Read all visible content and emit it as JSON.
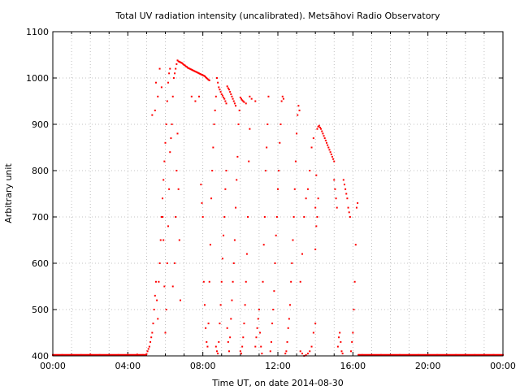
{
  "chart_data": {
    "type": "scatter",
    "title": "Total UV radiation intensity (uncalibrated). Metsähovi Radio Observatory",
    "xlabel": "Time UT, on date 2014-08-30",
    "ylabel": "Arbitrary unit",
    "xlim": [
      0,
      24
    ],
    "ylim": [
      400,
      1100
    ],
    "x_ticks": [
      {
        "value": 0,
        "label": "00:00"
      },
      {
        "value": 4,
        "label": "04:00"
      },
      {
        "value": 8,
        "label": "08:00"
      },
      {
        "value": 12,
        "label": "12:00"
      },
      {
        "value": 16,
        "label": "16:00"
      },
      {
        "value": 20,
        "label": "20:00"
      },
      {
        "value": 24,
        "label": "00:00"
      }
    ],
    "y_ticks": [
      400,
      500,
      600,
      700,
      800,
      900,
      1000,
      1100
    ],
    "grid": true,
    "marker_color": "#ff0000",
    "series": [
      {
        "points": [
          [
            0.0,
            402
          ],
          [
            0.5,
            402
          ],
          [
            1.0,
            402
          ],
          [
            1.5,
            402
          ],
          [
            2.0,
            403
          ],
          [
            2.5,
            402
          ],
          [
            3.0,
            402
          ],
          [
            3.5,
            402
          ],
          [
            4.0,
            402
          ],
          [
            4.5,
            403
          ],
          [
            4.8,
            402
          ],
          [
            5.0,
            404
          ],
          [
            5.05,
            410
          ],
          [
            5.1,
            415
          ],
          [
            5.15,
            420
          ],
          [
            5.2,
            430
          ],
          [
            5.25,
            440
          ],
          [
            5.3,
            450
          ],
          [
            5.35,
            470
          ],
          [
            5.4,
            500
          ],
          [
            5.45,
            530
          ],
          [
            5.5,
            560
          ],
          [
            5.55,
            520
          ],
          [
            5.6,
            480
          ],
          [
            5.65,
            560
          ],
          [
            5.7,
            600
          ],
          [
            5.75,
            650
          ],
          [
            5.8,
            700
          ],
          [
            5.85,
            740
          ],
          [
            5.9,
            780
          ],
          [
            5.95,
            820
          ],
          [
            6.0,
            860
          ],
          [
            6.05,
            900
          ],
          [
            6.1,
            950
          ],
          [
            6.15,
            990
          ],
          [
            6.2,
            1010
          ],
          [
            6.25,
            1020
          ],
          [
            5.3,
            920
          ],
          [
            5.45,
            930
          ],
          [
            5.5,
            990
          ],
          [
            5.6,
            960
          ],
          [
            5.7,
            1020
          ],
          [
            5.8,
            980
          ],
          [
            5.85,
            700
          ],
          [
            5.9,
            650
          ],
          [
            5.95,
            550
          ],
          [
            6.0,
            450
          ],
          [
            6.05,
            500
          ],
          [
            6.1,
            600
          ],
          [
            6.15,
            680
          ],
          [
            6.2,
            760
          ],
          [
            6.25,
            840
          ],
          [
            6.3,
            870
          ],
          [
            6.35,
            900
          ],
          [
            6.4,
            960
          ],
          [
            6.45,
            1000
          ],
          [
            6.5,
            1010
          ],
          [
            6.55,
            1020
          ],
          [
            6.6,
            1030
          ],
          [
            6.65,
            1038
          ],
          [
            6.7,
            1036
          ],
          [
            6.75,
            1035
          ],
          [
            6.8,
            1034
          ],
          [
            6.85,
            1033
          ],
          [
            6.9,
            1032
          ],
          [
            6.95,
            1030
          ],
          [
            7.0,
            1028
          ],
          [
            7.05,
            1027
          ],
          [
            7.1,
            1025
          ],
          [
            7.15,
            1024
          ],
          [
            7.2,
            1022
          ],
          [
            7.25,
            1021
          ],
          [
            7.3,
            1020
          ],
          [
            7.35,
            1019
          ],
          [
            7.4,
            1018
          ],
          [
            7.45,
            1017
          ],
          [
            7.5,
            1016
          ],
          [
            7.55,
            1015
          ],
          [
            7.6,
            1014
          ],
          [
            7.65,
            1013
          ],
          [
            7.7,
            1012
          ],
          [
            7.75,
            1011
          ],
          [
            7.8,
            1010
          ],
          [
            7.85,
            1009
          ],
          [
            7.9,
            1008
          ],
          [
            7.95,
            1007
          ],
          [
            8.0,
            1006
          ],
          [
            8.05,
            1005
          ],
          [
            8.1,
            1004
          ],
          [
            8.15,
            1002
          ],
          [
            8.2,
            1000
          ],
          [
            8.25,
            998
          ],
          [
            8.3,
            996
          ],
          [
            8.35,
            995
          ],
          [
            6.4,
            550
          ],
          [
            6.5,
            600
          ],
          [
            6.55,
            700
          ],
          [
            6.6,
            800
          ],
          [
            6.65,
            880
          ],
          [
            6.7,
            760
          ],
          [
            6.75,
            650
          ],
          [
            6.8,
            520
          ],
          [
            7.4,
            960
          ],
          [
            7.6,
            950
          ],
          [
            7.8,
            960
          ],
          [
            7.9,
            770
          ],
          [
            7.95,
            730
          ],
          [
            8.0,
            700
          ],
          [
            8.05,
            560
          ],
          [
            8.1,
            510
          ],
          [
            8.15,
            460
          ],
          [
            8.2,
            430
          ],
          [
            8.25,
            420
          ],
          [
            8.3,
            470
          ],
          [
            8.35,
            560
          ],
          [
            8.4,
            640
          ],
          [
            8.45,
            740
          ],
          [
            8.5,
            800
          ],
          [
            8.55,
            850
          ],
          [
            8.6,
            900
          ],
          [
            8.65,
            930
          ],
          [
            8.7,
            960
          ],
          [
            8.75,
            1000
          ],
          [
            8.8,
            990
          ],
          [
            8.85,
            980
          ],
          [
            8.9,
            975
          ],
          [
            8.95,
            970
          ],
          [
            9.0,
            965
          ],
          [
            9.05,
            962
          ],
          [
            9.1,
            958
          ],
          [
            9.15,
            955
          ],
          [
            9.2,
            950
          ],
          [
            9.25,
            945
          ],
          [
            8.7,
            420
          ],
          [
            8.75,
            410
          ],
          [
            8.8,
            405
          ],
          [
            8.85,
            430
          ],
          [
            8.9,
            470
          ],
          [
            8.95,
            510
          ],
          [
            9.0,
            560
          ],
          [
            9.05,
            610
          ],
          [
            9.1,
            660
          ],
          [
            9.15,
            700
          ],
          [
            9.2,
            760
          ],
          [
            9.25,
            800
          ],
          [
            9.3,
            982
          ],
          [
            9.35,
            978
          ],
          [
            9.4,
            975
          ],
          [
            9.45,
            970
          ],
          [
            9.5,
            965
          ],
          [
            9.55,
            960
          ],
          [
            9.6,
            955
          ],
          [
            9.65,
            950
          ],
          [
            9.7,
            945
          ],
          [
            9.75,
            940
          ],
          [
            9.3,
            460
          ],
          [
            9.35,
            430
          ],
          [
            9.4,
            410
          ],
          [
            9.45,
            440
          ],
          [
            9.5,
            480
          ],
          [
            9.55,
            520
          ],
          [
            9.6,
            560
          ],
          [
            9.65,
            600
          ],
          [
            9.7,
            650
          ],
          [
            9.75,
            720
          ],
          [
            9.8,
            780
          ],
          [
            9.85,
            830
          ],
          [
            9.9,
            900
          ],
          [
            9.95,
            930
          ],
          [
            10.0,
            958
          ],
          [
            10.05,
            955
          ],
          [
            10.1,
            952
          ],
          [
            10.15,
            950
          ],
          [
            10.2,
            948
          ],
          [
            10.3,
            945
          ],
          [
            10.5,
            960
          ],
          [
            10.6,
            955
          ],
          [
            10.8,
            950
          ],
          [
            10.0,
            410
          ],
          [
            10.05,
            405
          ],
          [
            10.1,
            420
          ],
          [
            10.15,
            440
          ],
          [
            10.2,
            470
          ],
          [
            10.25,
            510
          ],
          [
            10.3,
            560
          ],
          [
            10.35,
            620
          ],
          [
            10.4,
            700
          ],
          [
            10.45,
            820
          ],
          [
            10.5,
            890
          ],
          [
            10.8,
            420
          ],
          [
            10.85,
            440
          ],
          [
            10.9,
            460
          ],
          [
            10.95,
            480
          ],
          [
            11.0,
            500
          ],
          [
            11.05,
            450
          ],
          [
            11.1,
            420
          ],
          [
            11.15,
            405
          ],
          [
            11.2,
            560
          ],
          [
            11.25,
            640
          ],
          [
            11.3,
            700
          ],
          [
            11.35,
            800
          ],
          [
            11.4,
            850
          ],
          [
            11.45,
            900
          ],
          [
            11.5,
            960
          ],
          [
            11.6,
            410
          ],
          [
            11.65,
            430
          ],
          [
            11.7,
            470
          ],
          [
            11.75,
            500
          ],
          [
            11.8,
            540
          ],
          [
            11.85,
            600
          ],
          [
            11.9,
            660
          ],
          [
            11.95,
            700
          ],
          [
            12.0,
            760
          ],
          [
            12.05,
            800
          ],
          [
            12.1,
            860
          ],
          [
            12.15,
            900
          ],
          [
            12.2,
            950
          ],
          [
            12.25,
            960
          ],
          [
            12.3,
            955
          ],
          [
            12.4,
            405
          ],
          [
            12.45,
            410
          ],
          [
            12.5,
            430
          ],
          [
            12.55,
            460
          ],
          [
            12.6,
            480
          ],
          [
            12.65,
            510
          ],
          [
            12.7,
            560
          ],
          [
            12.75,
            600
          ],
          [
            12.8,
            650
          ],
          [
            12.85,
            700
          ],
          [
            12.9,
            760
          ],
          [
            12.95,
            820
          ],
          [
            13.0,
            880
          ],
          [
            13.05,
            920
          ],
          [
            13.1,
            940
          ],
          [
            13.15,
            930
          ],
          [
            13.2,
            410
          ],
          [
            13.3,
            405
          ],
          [
            13.4,
            400
          ],
          [
            13.5,
            402
          ],
          [
            13.6,
            405
          ],
          [
            13.7,
            410
          ],
          [
            13.8,
            420
          ],
          [
            13.9,
            450
          ],
          [
            14.0,
            470
          ],
          [
            13.2,
            560
          ],
          [
            13.3,
            620
          ],
          [
            13.4,
            700
          ],
          [
            13.5,
            740
          ],
          [
            13.6,
            760
          ],
          [
            13.7,
            800
          ],
          [
            13.8,
            850
          ],
          [
            13.9,
            870
          ],
          [
            14.0,
            720
          ],
          [
            14.05,
            790
          ],
          [
            14.1,
            890
          ],
          [
            14.15,
            895
          ],
          [
            14.2,
            897
          ],
          [
            14.25,
            893
          ],
          [
            14.3,
            890
          ],
          [
            14.35,
            885
          ],
          [
            14.4,
            880
          ],
          [
            14.45,
            875
          ],
          [
            14.5,
            870
          ],
          [
            14.55,
            865
          ],
          [
            14.6,
            860
          ],
          [
            14.65,
            855
          ],
          [
            14.7,
            850
          ],
          [
            14.75,
            845
          ],
          [
            14.8,
            840
          ],
          [
            14.85,
            835
          ],
          [
            14.9,
            830
          ],
          [
            14.95,
            825
          ],
          [
            15.0,
            820
          ],
          [
            14.0,
            630
          ],
          [
            14.05,
            680
          ],
          [
            14.1,
            700
          ],
          [
            14.15,
            740
          ],
          [
            15.0,
            780
          ],
          [
            15.05,
            760
          ],
          [
            15.1,
            740
          ],
          [
            15.15,
            720
          ],
          [
            15.2,
            420
          ],
          [
            15.25,
            440
          ],
          [
            15.3,
            450
          ],
          [
            15.35,
            430
          ],
          [
            15.4,
            410
          ],
          [
            15.45,
            405
          ],
          [
            15.5,
            780
          ],
          [
            15.55,
            770
          ],
          [
            15.6,
            760
          ],
          [
            15.65,
            750
          ],
          [
            15.7,
            740
          ],
          [
            15.75,
            720
          ],
          [
            15.8,
            710
          ],
          [
            15.85,
            700
          ],
          [
            15.9,
            410
          ],
          [
            15.95,
            430
          ],
          [
            16.0,
            450
          ],
          [
            16.05,
            500
          ],
          [
            16.1,
            560
          ],
          [
            16.15,
            640
          ],
          [
            16.2,
            720
          ],
          [
            16.25,
            730
          ],
          [
            16.3,
            402
          ],
          [
            16.5,
            402
          ],
          [
            17.0,
            402
          ],
          [
            17.5,
            402
          ],
          [
            18.0,
            402
          ],
          [
            18.5,
            402
          ],
          [
            19.0,
            402
          ],
          [
            19.5,
            402
          ],
          [
            20.0,
            402
          ],
          [
            20.5,
            402
          ],
          [
            21.0,
            402
          ],
          [
            21.5,
            402
          ],
          [
            22.0,
            402
          ],
          [
            22.5,
            402
          ],
          [
            23.0,
            402
          ],
          [
            23.5,
            402
          ],
          [
            24.0,
            402
          ]
        ]
      }
    ]
  }
}
